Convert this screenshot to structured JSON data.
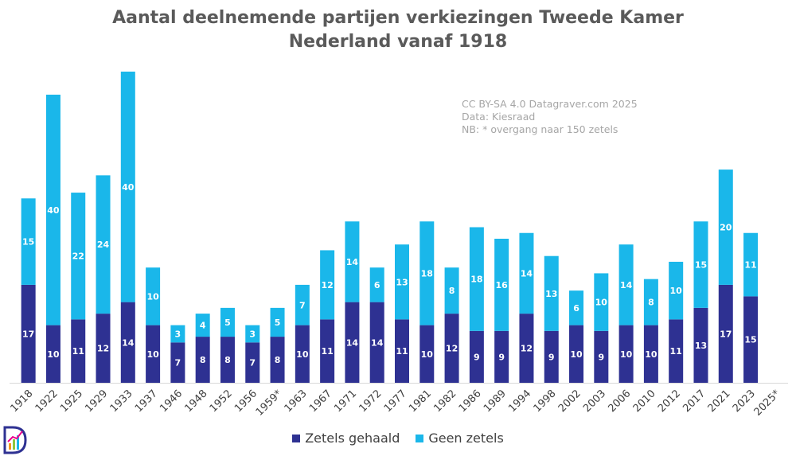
{
  "chart_data": {
    "type": "bar",
    "stacked": true,
    "title_line1": "Aantal deelnemende partijen verkiezingen Tweede Kamer",
    "title_line2": "Nederland vanaf 1918",
    "credits": [
      "CC BY-SA 4.0 Datagraver.com 2025",
      "Data: Kiesraad",
      "NB: * overgang naar 150 zetels"
    ],
    "categories": [
      "1918",
      "1922",
      "1925",
      "1929",
      "1933",
      "1937",
      "1946",
      "1948",
      "1952",
      "1956",
      "1959*",
      "1963",
      "1967",
      "1971",
      "1972",
      "1977",
      "1981",
      "1982",
      "1986",
      "1989",
      "1994",
      "1998",
      "2002",
      "2003",
      "2006",
      "2010",
      "2012",
      "2017",
      "2021",
      "2023",
      "2025*"
    ],
    "series": [
      {
        "name": "Zetels gehaald",
        "color": "#2e3192",
        "values": [
          17,
          10,
          11,
          12,
          14,
          10,
          7,
          8,
          8,
          7,
          8,
          10,
          11,
          14,
          14,
          11,
          10,
          12,
          9,
          9,
          12,
          9,
          10,
          9,
          10,
          10,
          11,
          13,
          17,
          15,
          null
        ]
      },
      {
        "name": "Geen zetels",
        "color": "#1ab7ea",
        "values": [
          15,
          40,
          22,
          24,
          40,
          10,
          3,
          4,
          5,
          3,
          5,
          7,
          12,
          14,
          6,
          13,
          18,
          8,
          18,
          16,
          14,
          13,
          6,
          10,
          14,
          8,
          10,
          15,
          20,
          11,
          null
        ]
      }
    ],
    "ylim": [
      0,
      55
    ],
    "xlabel": "",
    "ylabel": "",
    "legend_position": "bottom"
  }
}
